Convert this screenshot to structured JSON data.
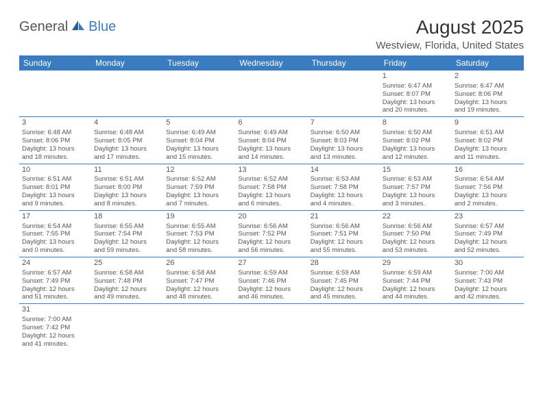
{
  "logo": {
    "part1": "General",
    "part2": "Blue"
  },
  "title": "August 2025",
  "location": "Westview, Florida, United States",
  "weekdays": [
    "Sunday",
    "Monday",
    "Tuesday",
    "Wednesday",
    "Thursday",
    "Friday",
    "Saturday"
  ],
  "colors": {
    "header_bg": "#3b7bbf",
    "header_fg": "#ffffff",
    "text": "#555555",
    "title": "#333333",
    "rule": "#3b7bbf"
  },
  "weeks": [
    [
      null,
      null,
      null,
      null,
      null,
      {
        "n": "1",
        "sr": "Sunrise: 6:47 AM",
        "ss": "Sunset: 8:07 PM",
        "d1": "Daylight: 13 hours",
        "d2": "and 20 minutes."
      },
      {
        "n": "2",
        "sr": "Sunrise: 6:47 AM",
        "ss": "Sunset: 8:06 PM",
        "d1": "Daylight: 13 hours",
        "d2": "and 19 minutes."
      }
    ],
    [
      {
        "n": "3",
        "sr": "Sunrise: 6:48 AM",
        "ss": "Sunset: 8:06 PM",
        "d1": "Daylight: 13 hours",
        "d2": "and 18 minutes."
      },
      {
        "n": "4",
        "sr": "Sunrise: 6:48 AM",
        "ss": "Sunset: 8:05 PM",
        "d1": "Daylight: 13 hours",
        "d2": "and 17 minutes."
      },
      {
        "n": "5",
        "sr": "Sunrise: 6:49 AM",
        "ss": "Sunset: 8:04 PM",
        "d1": "Daylight: 13 hours",
        "d2": "and 15 minutes."
      },
      {
        "n": "6",
        "sr": "Sunrise: 6:49 AM",
        "ss": "Sunset: 8:04 PM",
        "d1": "Daylight: 13 hours",
        "d2": "and 14 minutes."
      },
      {
        "n": "7",
        "sr": "Sunrise: 6:50 AM",
        "ss": "Sunset: 8:03 PM",
        "d1": "Daylight: 13 hours",
        "d2": "and 13 minutes."
      },
      {
        "n": "8",
        "sr": "Sunrise: 6:50 AM",
        "ss": "Sunset: 8:02 PM",
        "d1": "Daylight: 13 hours",
        "d2": "and 12 minutes."
      },
      {
        "n": "9",
        "sr": "Sunrise: 6:51 AM",
        "ss": "Sunset: 8:02 PM",
        "d1": "Daylight: 13 hours",
        "d2": "and 11 minutes."
      }
    ],
    [
      {
        "n": "10",
        "sr": "Sunrise: 6:51 AM",
        "ss": "Sunset: 8:01 PM",
        "d1": "Daylight: 13 hours",
        "d2": "and 9 minutes."
      },
      {
        "n": "11",
        "sr": "Sunrise: 6:51 AM",
        "ss": "Sunset: 8:00 PM",
        "d1": "Daylight: 13 hours",
        "d2": "and 8 minutes."
      },
      {
        "n": "12",
        "sr": "Sunrise: 6:52 AM",
        "ss": "Sunset: 7:59 PM",
        "d1": "Daylight: 13 hours",
        "d2": "and 7 minutes."
      },
      {
        "n": "13",
        "sr": "Sunrise: 6:52 AM",
        "ss": "Sunset: 7:58 PM",
        "d1": "Daylight: 13 hours",
        "d2": "and 6 minutes."
      },
      {
        "n": "14",
        "sr": "Sunrise: 6:53 AM",
        "ss": "Sunset: 7:58 PM",
        "d1": "Daylight: 13 hours",
        "d2": "and 4 minutes."
      },
      {
        "n": "15",
        "sr": "Sunrise: 6:53 AM",
        "ss": "Sunset: 7:57 PM",
        "d1": "Daylight: 13 hours",
        "d2": "and 3 minutes."
      },
      {
        "n": "16",
        "sr": "Sunrise: 6:54 AM",
        "ss": "Sunset: 7:56 PM",
        "d1": "Daylight: 13 hours",
        "d2": "and 2 minutes."
      }
    ],
    [
      {
        "n": "17",
        "sr": "Sunrise: 6:54 AM",
        "ss": "Sunset: 7:55 PM",
        "d1": "Daylight: 13 hours",
        "d2": "and 0 minutes."
      },
      {
        "n": "18",
        "sr": "Sunrise: 6:55 AM",
        "ss": "Sunset: 7:54 PM",
        "d1": "Daylight: 12 hours",
        "d2": "and 59 minutes."
      },
      {
        "n": "19",
        "sr": "Sunrise: 6:55 AM",
        "ss": "Sunset: 7:53 PM",
        "d1": "Daylight: 12 hours",
        "d2": "and 58 minutes."
      },
      {
        "n": "20",
        "sr": "Sunrise: 6:56 AM",
        "ss": "Sunset: 7:52 PM",
        "d1": "Daylight: 12 hours",
        "d2": "and 56 minutes."
      },
      {
        "n": "21",
        "sr": "Sunrise: 6:56 AM",
        "ss": "Sunset: 7:51 PM",
        "d1": "Daylight: 12 hours",
        "d2": "and 55 minutes."
      },
      {
        "n": "22",
        "sr": "Sunrise: 6:56 AM",
        "ss": "Sunset: 7:50 PM",
        "d1": "Daylight: 12 hours",
        "d2": "and 53 minutes."
      },
      {
        "n": "23",
        "sr": "Sunrise: 6:57 AM",
        "ss": "Sunset: 7:49 PM",
        "d1": "Daylight: 12 hours",
        "d2": "and 52 minutes."
      }
    ],
    [
      {
        "n": "24",
        "sr": "Sunrise: 6:57 AM",
        "ss": "Sunset: 7:49 PM",
        "d1": "Daylight: 12 hours",
        "d2": "and 51 minutes."
      },
      {
        "n": "25",
        "sr": "Sunrise: 6:58 AM",
        "ss": "Sunset: 7:48 PM",
        "d1": "Daylight: 12 hours",
        "d2": "and 49 minutes."
      },
      {
        "n": "26",
        "sr": "Sunrise: 6:58 AM",
        "ss": "Sunset: 7:47 PM",
        "d1": "Daylight: 12 hours",
        "d2": "and 48 minutes."
      },
      {
        "n": "27",
        "sr": "Sunrise: 6:59 AM",
        "ss": "Sunset: 7:46 PM",
        "d1": "Daylight: 12 hours",
        "d2": "and 46 minutes."
      },
      {
        "n": "28",
        "sr": "Sunrise: 6:59 AM",
        "ss": "Sunset: 7:45 PM",
        "d1": "Daylight: 12 hours",
        "d2": "and 45 minutes."
      },
      {
        "n": "29",
        "sr": "Sunrise: 6:59 AM",
        "ss": "Sunset: 7:44 PM",
        "d1": "Daylight: 12 hours",
        "d2": "and 44 minutes."
      },
      {
        "n": "30",
        "sr": "Sunrise: 7:00 AM",
        "ss": "Sunset: 7:43 PM",
        "d1": "Daylight: 12 hours",
        "d2": "and 42 minutes."
      }
    ],
    [
      {
        "n": "31",
        "sr": "Sunrise: 7:00 AM",
        "ss": "Sunset: 7:42 PM",
        "d1": "Daylight: 12 hours",
        "d2": "and 41 minutes."
      },
      null,
      null,
      null,
      null,
      null,
      null
    ]
  ]
}
